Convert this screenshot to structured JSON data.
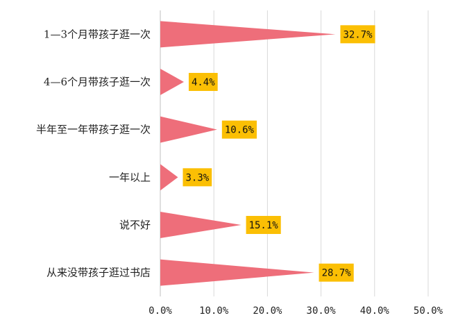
{
  "chart_data": {
    "type": "bar",
    "orientation": "horizontal",
    "mark_shape": "triangle",
    "categories": [
      "1—3个月带孩子逛一次",
      "4—6个月带孩子逛一次",
      "半年至一年带孩子逛一次",
      "一年以上",
      "说不好",
      "从来没带孩子逛过书店"
    ],
    "values": [
      32.7,
      4.4,
      10.6,
      3.3,
      15.1,
      28.7
    ],
    "data_labels": [
      "32.7%",
      "4.4%",
      "10.6%",
      "3.3%",
      "15.1%",
      "28.7%"
    ],
    "xlim": [
      0,
      50
    ],
    "x_ticks": [
      0,
      10,
      20,
      30,
      40,
      50
    ],
    "x_tick_labels": [
      "0.0%",
      "10.0%",
      "20.0%",
      "30.0%",
      "40.0%",
      "50.0%"
    ],
    "title": "",
    "xlabel": "",
    "ylabel": "",
    "grid": true,
    "legend": "none",
    "colors": {
      "bar": "#ee6e7a",
      "label_bg": "#fbbf04",
      "grid": "#d9d9d9"
    }
  }
}
